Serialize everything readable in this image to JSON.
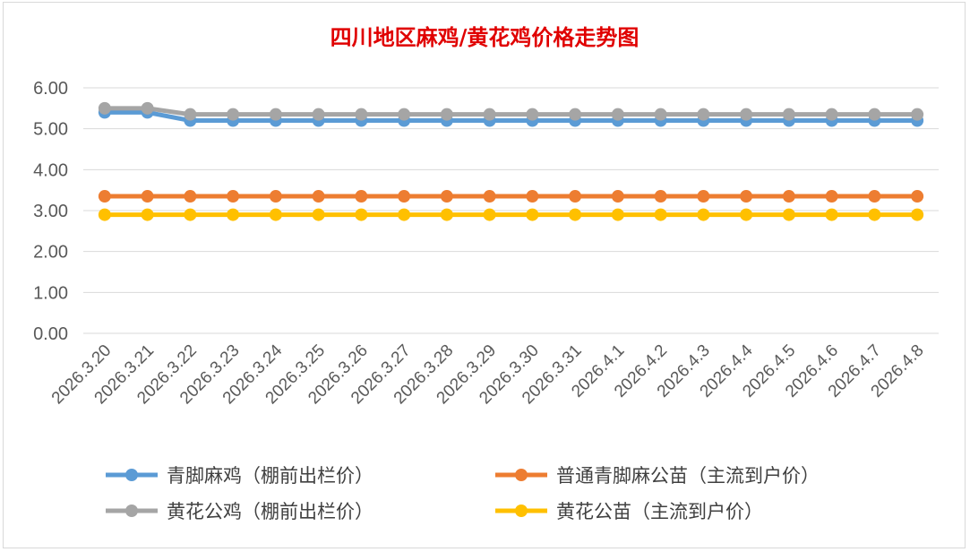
{
  "chart_data": {
    "type": "line",
    "title": "四川地区麻鸡/黄花鸡价格走势图",
    "xlabel": "",
    "ylabel": "",
    "ylim": [
      0,
      6
    ],
    "yticks": [
      "0.00",
      "1.00",
      "2.00",
      "3.00",
      "4.00",
      "5.00",
      "6.00"
    ],
    "grid": true,
    "legend_position": "bottom",
    "categories": [
      "2026.3.20",
      "2026.3.21",
      "2026.3.22",
      "2026.3.23",
      "2026.3.24",
      "2026.3.25",
      "2026.3.26",
      "2026.3.27",
      "2026.3.28",
      "2026.3.29",
      "2026.3.30",
      "2026.3.31",
      "2026.4.1",
      "2026.4.2",
      "2026.4.3",
      "2026.4.4",
      "2026.4.5",
      "2026.4.6",
      "2026.4.7",
      "2026.4.8"
    ],
    "series": [
      {
        "name": "青脚麻鸡（棚前出栏价）",
        "color": "#5b9bd5",
        "values": [
          5.4,
          5.4,
          5.2,
          5.2,
          5.2,
          5.2,
          5.2,
          5.2,
          5.2,
          5.2,
          5.2,
          5.2,
          5.2,
          5.2,
          5.2,
          5.2,
          5.2,
          5.2,
          5.2,
          5.2
        ]
      },
      {
        "name": "普通青脚麻公苗（主流到户价）",
        "color": "#ed7d31",
        "values": [
          3.35,
          3.35,
          3.35,
          3.35,
          3.35,
          3.35,
          3.35,
          3.35,
          3.35,
          3.35,
          3.35,
          3.35,
          3.35,
          3.35,
          3.35,
          3.35,
          3.35,
          3.35,
          3.35,
          3.35
        ]
      },
      {
        "name": "黄花公鸡（棚前出栏价）",
        "color": "#a5a5a5",
        "values": [
          5.5,
          5.5,
          5.35,
          5.35,
          5.35,
          5.35,
          5.35,
          5.35,
          5.35,
          5.35,
          5.35,
          5.35,
          5.35,
          5.35,
          5.35,
          5.35,
          5.35,
          5.35,
          5.35,
          5.35
        ]
      },
      {
        "name": "黄花公苗（主流到户价）",
        "color": "#ffc000",
        "values": [
          2.9,
          2.9,
          2.9,
          2.9,
          2.9,
          2.9,
          2.9,
          2.9,
          2.9,
          2.9,
          2.9,
          2.9,
          2.9,
          2.9,
          2.9,
          2.9,
          2.9,
          2.9,
          2.9,
          2.9
        ]
      }
    ]
  }
}
